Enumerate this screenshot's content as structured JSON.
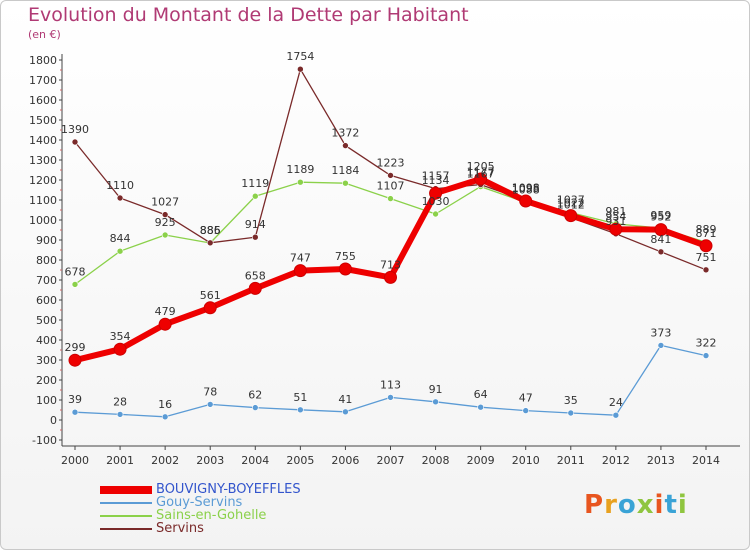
{
  "header": {
    "title": "Evolution du Montant de la Dette par Habitant",
    "subtitle": "(en €)"
  },
  "logo": {
    "text": "Proxiti",
    "colors": [
      "#e8551f",
      "#e8a11f",
      "#3aa3d6",
      "#8fc53f",
      "#e8551f",
      "#3aa3d6",
      "#8fc53f"
    ]
  },
  "chart_data": {
    "type": "line",
    "x": [
      2000,
      2001,
      2002,
      2003,
      2004,
      2005,
      2006,
      2007,
      2008,
      2009,
      2010,
      2011,
      2012,
      2013,
      2014
    ],
    "ylim": [
      -100,
      1800
    ],
    "yticks": [
      -100,
      0,
      100,
      200,
      300,
      400,
      500,
      600,
      700,
      800,
      900,
      1000,
      1100,
      1200,
      1300,
      1400,
      1500,
      1600,
      1700,
      1800
    ],
    "grid": false,
    "legend_position": "bottom-left",
    "series": [
      {
        "name": "Gouy-Servins",
        "color": "#5b9bd5",
        "width": 1.3,
        "values": [
          39,
          28,
          16,
          78,
          62,
          51,
          41,
          113,
          91,
          64,
          47,
          35,
          24,
          373,
          322
        ],
        "labels": [
          "39",
          "28",
          "16",
          "78",
          "62",
          "51",
          "41",
          "113",
          "91",
          "64",
          "47",
          "35",
          "24",
          "373",
          "322"
        ]
      },
      {
        "name": "Sains-en-Gohelle",
        "color": "#8bd14a",
        "width": 1.3,
        "values": [
          678,
          844,
          925,
          885,
          1119,
          1189,
          1184,
          1107,
          1030,
          1167,
          1088,
          1037,
          981,
          959,
          889
        ],
        "labels": [
          "678",
          "844",
          "925",
          "885",
          "1119",
          "1189",
          "1184",
          "1107",
          "1030",
          "1167",
          "1088",
          "1037",
          "981",
          "959",
          "889"
        ]
      },
      {
        "name": "Servins",
        "color": "#7a2a2a",
        "width": 1.3,
        "values": [
          1390,
          1110,
          1027,
          886,
          914,
          1754,
          1372,
          1223,
          1157,
          1177,
          1098,
          1012,
          931,
          841,
          751
        ],
        "labels": [
          "1390",
          "1110",
          "1027",
          "886",
          "914",
          "1754",
          "1372",
          "1223",
          "1157",
          "1177",
          "1098",
          "1012",
          "931",
          "841",
          "751"
        ]
      },
      {
        "name": "BOUVIGNY-BOYEFFLES",
        "color": "#ee0000",
        "width": 6,
        "values": [
          299,
          354,
          479,
          561,
          658,
          747,
          755,
          713,
          1134,
          1205,
          1095,
          1022,
          954,
          952,
          871
        ],
        "labels": [
          "299",
          "354",
          "479",
          "561",
          "658",
          "747",
          "755",
          "713",
          "1134",
          "1205",
          "1095",
          "1022",
          "954",
          "952",
          "871"
        ]
      }
    ]
  },
  "legend": [
    {
      "label": "BOUVIGNY-BOYEFFLES",
      "color": "#ee0000",
      "thickness": 8
    },
    {
      "label": "Gouy-Servins",
      "color": "#5b9bd5",
      "thickness": 2
    },
    {
      "label": "Sains-en-Gohelle",
      "color": "#8bd14a",
      "thickness": 2
    },
    {
      "label": "Servins",
      "color": "#7a2a2a",
      "thickness": 2
    }
  ]
}
